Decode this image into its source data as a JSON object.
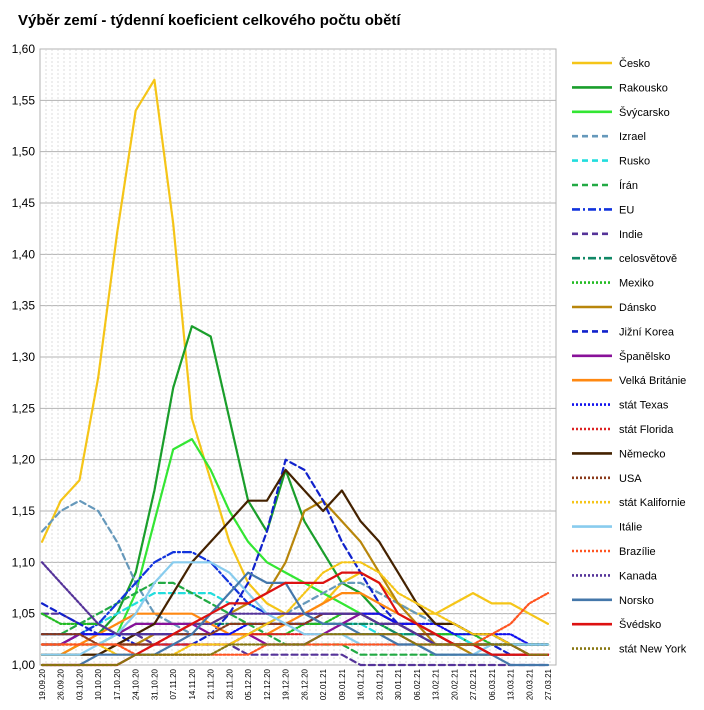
{
  "chart_data": {
    "type": "line",
    "title": "Výběr zemí - týdenní koeficient celkového počtu obětí",
    "xlabel": "",
    "ylabel": "",
    "ylim": [
      1.0,
      1.6
    ],
    "yticks": [
      "1,00",
      "1,05",
      "1,10",
      "1,15",
      "1,20",
      "1,25",
      "1,30",
      "1,35",
      "1,40",
      "1,45",
      "1,50",
      "1,55",
      "1,60"
    ],
    "x": [
      "19.09.20",
      "26.09.20",
      "03.10.20",
      "10.10.20",
      "17.10.20",
      "24.10.20",
      "31.10.20",
      "07.11.20",
      "14.11.20",
      "21.11.20",
      "28.11.20",
      "05.12.20",
      "12.12.20",
      "19.12.20",
      "26.12.20",
      "02.01.21",
      "09.01.21",
      "16.01.21",
      "23.01.21",
      "30.01.21",
      "06.02.21",
      "13.02.21",
      "20.02.21",
      "27.02.21",
      "06.03.21",
      "13.03.21",
      "20.03.21",
      "27.03.21"
    ],
    "grid": true,
    "legend_position": "right",
    "series": [
      {
        "name": "Česko",
        "color": "#f5c518",
        "dash": "solid",
        "values": [
          1.12,
          1.16,
          1.18,
          1.28,
          1.42,
          1.54,
          1.57,
          1.43,
          1.24,
          1.18,
          1.12,
          1.08,
          1.06,
          1.05,
          1.05,
          1.06,
          1.08,
          1.09,
          1.08,
          1.06,
          1.05,
          1.05,
          1.06,
          1.07,
          1.06,
          1.06,
          1.05,
          1.04
        ]
      },
      {
        "name": "Rakousko",
        "color": "#1a9e2b",
        "dash": "solid",
        "values": [
          1.02,
          1.02,
          1.03,
          1.03,
          1.05,
          1.09,
          1.17,
          1.27,
          1.33,
          1.32,
          1.24,
          1.16,
          1.13,
          1.19,
          1.14,
          1.11,
          1.08,
          1.07,
          1.05,
          1.04,
          1.04,
          1.03,
          1.03,
          1.02,
          1.02,
          1.02,
          1.02,
          1.02
        ]
      },
      {
        "name": "Švýcarsko",
        "color": "#33e633",
        "dash": "solid",
        "values": [
          1.01,
          1.01,
          1.02,
          1.02,
          1.03,
          1.07,
          1.14,
          1.21,
          1.22,
          1.19,
          1.15,
          1.12,
          1.1,
          1.09,
          1.08,
          1.07,
          1.06,
          1.05,
          1.04,
          1.03,
          1.03,
          1.02,
          1.02,
          1.02,
          1.01,
          1.01,
          1.01,
          1.01
        ]
      },
      {
        "name": "Izrael",
        "color": "#6699bb",
        "dash": "dash",
        "values": [
          1.13,
          1.15,
          1.16,
          1.15,
          1.12,
          1.08,
          1.05,
          1.04,
          1.03,
          1.03,
          1.03,
          1.03,
          1.04,
          1.05,
          1.06,
          1.07,
          1.08,
          1.08,
          1.07,
          1.06,
          1.05,
          1.04,
          1.04,
          1.03,
          1.03,
          1.02,
          1.02,
          1.02
        ]
      },
      {
        "name": "Rusko",
        "color": "#22dddd",
        "dash": "dash",
        "values": [
          1.02,
          1.02,
          1.03,
          1.04,
          1.05,
          1.06,
          1.07,
          1.07,
          1.07,
          1.07,
          1.06,
          1.06,
          1.05,
          1.05,
          1.05,
          1.04,
          1.04,
          1.04,
          1.03,
          1.03,
          1.03,
          1.03,
          1.03,
          1.02,
          1.02,
          1.02,
          1.02,
          1.02
        ]
      },
      {
        "name": "Írán",
        "color": "#22aa44",
        "dash": "dash",
        "values": [
          1.03,
          1.03,
          1.04,
          1.05,
          1.06,
          1.07,
          1.08,
          1.08,
          1.07,
          1.06,
          1.05,
          1.04,
          1.03,
          1.02,
          1.02,
          1.02,
          1.02,
          1.01,
          1.01,
          1.01,
          1.01,
          1.01,
          1.01,
          1.01,
          1.01,
          1.01,
          1.01,
          1.01
        ]
      },
      {
        "name": "EU",
        "color": "#1133dd",
        "dash": "dashdot",
        "values": [
          1.02,
          1.02,
          1.03,
          1.04,
          1.06,
          1.08,
          1.1,
          1.11,
          1.11,
          1.1,
          1.08,
          1.06,
          1.05,
          1.05,
          1.05,
          1.05,
          1.05,
          1.05,
          1.04,
          1.04,
          1.03,
          1.03,
          1.02,
          1.02,
          1.02,
          1.02,
          1.02,
          1.02
        ]
      },
      {
        "name": "Indie",
        "color": "#553399",
        "dash": "dash",
        "values": [
          1.05,
          1.05,
          1.04,
          1.04,
          1.03,
          1.03,
          1.02,
          1.02,
          1.02,
          1.02,
          1.02,
          1.01,
          1.01,
          1.01,
          1.01,
          1.01,
          1.01,
          1.0,
          1.0,
          1.0,
          1.0,
          1.0,
          1.0,
          1.0,
          1.0,
          1.0,
          1.0,
          1.0
        ]
      },
      {
        "name": "celosvětově",
        "color": "#118866",
        "dash": "dashdot",
        "values": [
          1.03,
          1.03,
          1.03,
          1.03,
          1.03,
          1.04,
          1.04,
          1.04,
          1.04,
          1.04,
          1.04,
          1.04,
          1.04,
          1.04,
          1.04,
          1.04,
          1.04,
          1.04,
          1.04,
          1.03,
          1.03,
          1.03,
          1.02,
          1.02,
          1.02,
          1.02,
          1.02,
          1.02
        ]
      },
      {
        "name": "Mexiko",
        "color": "#22bb22",
        "dash": "dot",
        "values": [
          1.05,
          1.04,
          1.04,
          1.04,
          1.03,
          1.03,
          1.03,
          1.03,
          1.03,
          1.03,
          1.03,
          1.03,
          1.03,
          1.03,
          1.04,
          1.04,
          1.05,
          1.05,
          1.05,
          1.04,
          1.04,
          1.03,
          1.03,
          1.03,
          1.02,
          1.02,
          1.02,
          1.02
        ]
      },
      {
        "name": "Dánsko",
        "color": "#b8860b",
        "dash": "solid",
        "values": [
          1.01,
          1.01,
          1.01,
          1.01,
          1.02,
          1.02,
          1.03,
          1.03,
          1.04,
          1.04,
          1.05,
          1.06,
          1.07,
          1.1,
          1.15,
          1.16,
          1.14,
          1.12,
          1.09,
          1.06,
          1.04,
          1.02,
          1.02,
          1.01,
          1.01,
          1.01,
          1.01,
          1.01
        ]
      },
      {
        "name": "Jižní Korea",
        "color": "#1122cc",
        "dash": "dash",
        "values": [
          1.06,
          1.05,
          1.04,
          1.03,
          1.03,
          1.02,
          1.02,
          1.02,
          1.02,
          1.03,
          1.05,
          1.08,
          1.13,
          1.2,
          1.19,
          1.16,
          1.12,
          1.09,
          1.06,
          1.04,
          1.03,
          1.02,
          1.02,
          1.02,
          1.02,
          1.01,
          1.01,
          1.01
        ]
      },
      {
        "name": "Španělsko",
        "color": "#881199",
        "dash": "solid",
        "values": [
          1.02,
          1.02,
          1.03,
          1.03,
          1.03,
          1.04,
          1.04,
          1.04,
          1.04,
          1.03,
          1.03,
          1.03,
          1.02,
          1.02,
          1.02,
          1.03,
          1.04,
          1.05,
          1.05,
          1.04,
          1.04,
          1.03,
          1.02,
          1.02,
          1.01,
          1.01,
          1.01,
          1.01
        ]
      },
      {
        "name": "Velká Británie",
        "color": "#ff8811",
        "dash": "solid",
        "values": [
          1.01,
          1.01,
          1.02,
          1.03,
          1.04,
          1.05,
          1.05,
          1.05,
          1.05,
          1.04,
          1.03,
          1.03,
          1.03,
          1.04,
          1.05,
          1.06,
          1.07,
          1.07,
          1.06,
          1.05,
          1.04,
          1.03,
          1.02,
          1.02,
          1.01,
          1.01,
          1.01,
          1.01
        ]
      },
      {
        "name": "stát Texas",
        "color": "#1111ee",
        "dash": "dot",
        "values": [
          1.03,
          1.03,
          1.03,
          1.03,
          1.03,
          1.03,
          1.03,
          1.03,
          1.03,
          1.03,
          1.03,
          1.04,
          1.04,
          1.04,
          1.04,
          1.05,
          1.05,
          1.05,
          1.05,
          1.04,
          1.04,
          1.04,
          1.03,
          1.03,
          1.03,
          1.03,
          1.02,
          1.02
        ]
      },
      {
        "name": "stát Florida",
        "color": "#dd2222",
        "dash": "dot",
        "values": [
          1.02,
          1.02,
          1.02,
          1.02,
          1.02,
          1.02,
          1.02,
          1.02,
          1.02,
          1.02,
          1.02,
          1.03,
          1.03,
          1.03,
          1.03,
          1.03,
          1.03,
          1.03,
          1.03,
          1.03,
          1.02,
          1.02,
          1.02,
          1.02,
          1.02,
          1.02,
          1.01,
          1.01
        ]
      },
      {
        "name": "Německo",
        "color": "#442200",
        "dash": "solid",
        "values": [
          1.01,
          1.01,
          1.01,
          1.01,
          1.02,
          1.03,
          1.04,
          1.07,
          1.1,
          1.12,
          1.14,
          1.16,
          1.16,
          1.19,
          1.17,
          1.15,
          1.17,
          1.14,
          1.12,
          1.09,
          1.06,
          1.04,
          1.04,
          1.03,
          1.03,
          1.02,
          1.02,
          1.02
        ]
      },
      {
        "name": "USA",
        "color": "#8b3a1a",
        "dash": "dot",
        "values": [
          1.03,
          1.03,
          1.03,
          1.02,
          1.02,
          1.02,
          1.02,
          1.03,
          1.03,
          1.03,
          1.04,
          1.04,
          1.04,
          1.04,
          1.04,
          1.05,
          1.05,
          1.05,
          1.04,
          1.04,
          1.03,
          1.03,
          1.02,
          1.02,
          1.02,
          1.02,
          1.01,
          1.01
        ]
      },
      {
        "name": "stát Kalifornie",
        "color": "#f5c518",
        "dash": "dot",
        "values": [
          1.02,
          1.02,
          1.02,
          1.02,
          1.01,
          1.01,
          1.01,
          1.01,
          1.02,
          1.02,
          1.02,
          1.03,
          1.04,
          1.05,
          1.07,
          1.09,
          1.1,
          1.1,
          1.09,
          1.07,
          1.06,
          1.05,
          1.04,
          1.03,
          1.03,
          1.02,
          1.02,
          1.02
        ]
      },
      {
        "name": "Itálie",
        "color": "#88ccee",
        "dash": "solid",
        "values": [
          1.01,
          1.01,
          1.01,
          1.02,
          1.03,
          1.05,
          1.08,
          1.1,
          1.1,
          1.1,
          1.09,
          1.07,
          1.05,
          1.04,
          1.03,
          1.03,
          1.03,
          1.02,
          1.02,
          1.02,
          1.02,
          1.01,
          1.01,
          1.01,
          1.02,
          1.02,
          1.02,
          1.02
        ]
      },
      {
        "name": "Brazílie",
        "color": "#ff5522",
        "dash": "dot",
        "values": [
          1.02,
          1.02,
          1.02,
          1.02,
          1.02,
          1.01,
          1.01,
          1.01,
          1.01,
          1.01,
          1.01,
          1.01,
          1.02,
          1.02,
          1.02,
          1.02,
          1.02,
          1.02,
          1.02,
          1.02,
          1.02,
          1.02,
          1.02,
          1.02,
          1.03,
          1.04,
          1.06,
          1.07
        ]
      },
      {
        "name": "Kanada",
        "color": "#553399",
        "dash": "dot",
        "values": [
          1.1,
          1.08,
          1.06,
          1.04,
          1.03,
          1.03,
          1.03,
          1.03,
          1.04,
          1.04,
          1.05,
          1.05,
          1.05,
          1.05,
          1.05,
          1.05,
          1.05,
          1.05,
          1.04,
          1.04,
          1.03,
          1.02,
          1.02,
          1.02,
          1.01,
          1.01,
          1.01,
          1.01
        ]
      },
      {
        "name": "Norsko",
        "color": "#4477aa",
        "dash": "solid",
        "values": [
          1.0,
          1.0,
          1.0,
          1.01,
          1.01,
          1.01,
          1.01,
          1.02,
          1.03,
          1.05,
          1.07,
          1.09,
          1.08,
          1.08,
          1.05,
          1.04,
          1.04,
          1.03,
          1.03,
          1.02,
          1.02,
          1.01,
          1.01,
          1.01,
          1.01,
          1.0,
          1.0,
          1.0
        ]
      },
      {
        "name": "Švédsko",
        "color": "#dd1111",
        "dash": "solid",
        "values": [
          1.0,
          1.0,
          1.0,
          1.0,
          1.0,
          1.01,
          1.02,
          1.03,
          1.04,
          1.05,
          1.06,
          1.06,
          1.07,
          1.08,
          1.08,
          1.08,
          1.09,
          1.09,
          1.08,
          1.05,
          1.04,
          1.03,
          1.02,
          1.02,
          1.01,
          1.01,
          1.01,
          1.01
        ]
      },
      {
        "name": "stát New York",
        "color": "#887711",
        "dash": "dot",
        "values": [
          1.0,
          1.0,
          1.0,
          1.0,
          1.0,
          1.01,
          1.01,
          1.01,
          1.01,
          1.01,
          1.02,
          1.02,
          1.02,
          1.02,
          1.02,
          1.03,
          1.03,
          1.03,
          1.03,
          1.03,
          1.02,
          1.02,
          1.02,
          1.02,
          1.02,
          1.02,
          1.01,
          1.01
        ]
      }
    ]
  }
}
